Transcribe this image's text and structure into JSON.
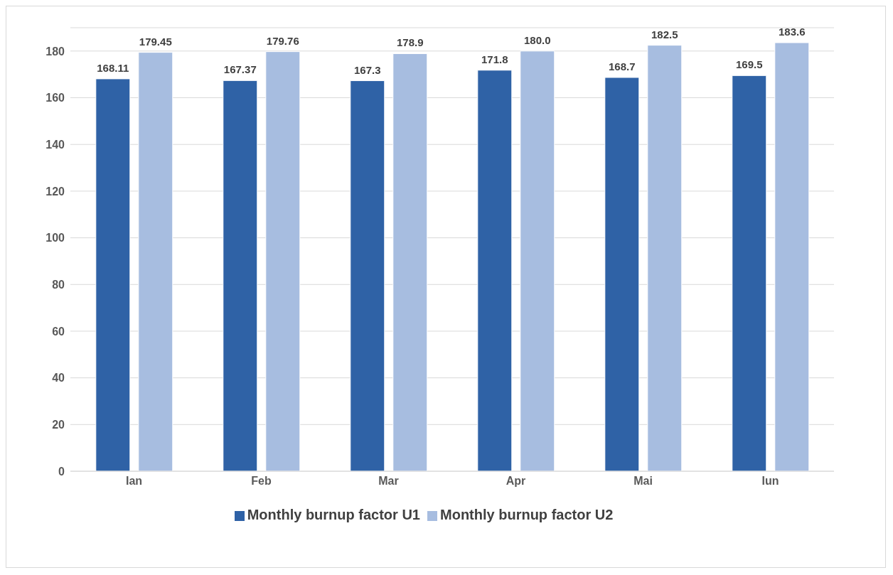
{
  "chart_data": {
    "type": "bar",
    "categories": [
      "Ian",
      "Feb",
      "Mar",
      "Apr",
      "Mai",
      "Iun"
    ],
    "series": [
      {
        "name": "Monthly burnup factor U1",
        "color": "#2f62a6",
        "values": [
          168.11,
          167.37,
          167.3,
          171.8,
          168.7,
          169.5
        ],
        "value_labels": [
          "168.11",
          "167.37",
          "167.3",
          "171.8",
          "168.7",
          "169.5"
        ]
      },
      {
        "name": "Monthly burnup factor U2",
        "color": "#a7bde0",
        "values": [
          179.45,
          179.76,
          178.9,
          180.0,
          182.5,
          183.6
        ],
        "value_labels": [
          "179.45",
          "179.76",
          "178.9",
          "180.0",
          "182.5",
          "183.6"
        ]
      }
    ],
    "ylim": [
      0,
      190
    ],
    "yticks": [
      0,
      20,
      40,
      60,
      80,
      100,
      120,
      140,
      160,
      180
    ],
    "grid": "y",
    "legend": "bottom"
  }
}
